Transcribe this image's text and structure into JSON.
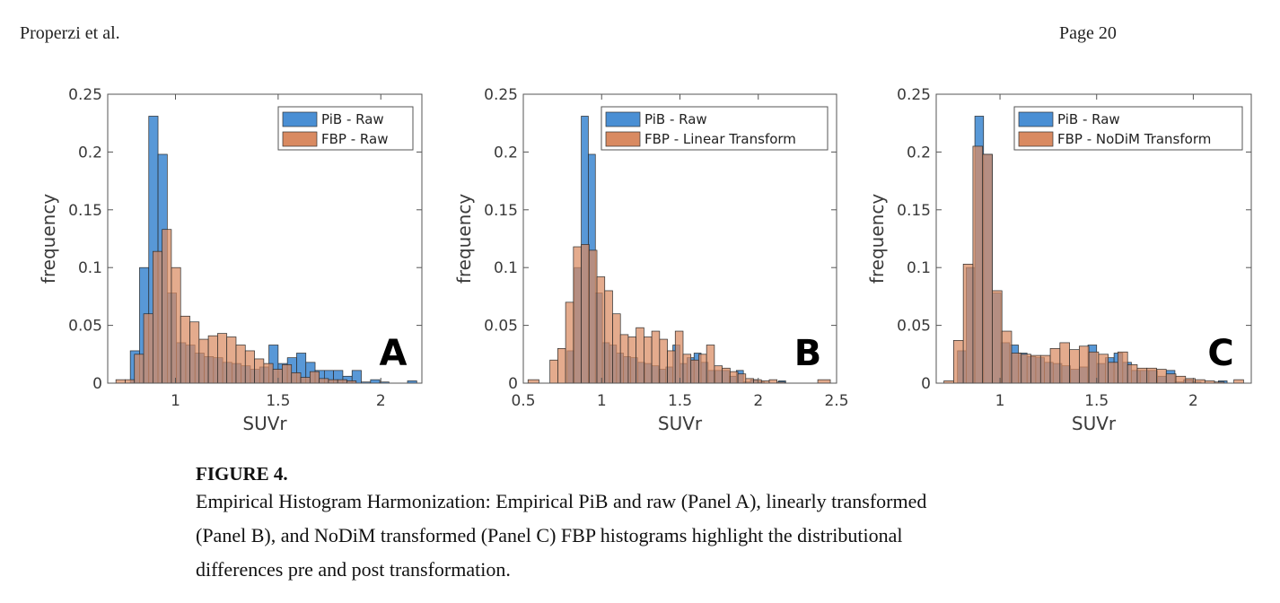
{
  "header": {
    "author": "Properzi et al.",
    "page": "Page 20"
  },
  "caption": {
    "figure_label": "FIGURE 4.",
    "lines": [
      "Empirical Histogram Harmonization: Empirical PiB and raw (Panel A), linearly transformed",
      "(Panel B), and NoDiM transformed (Panel C) FBP histograms highlight the distributional",
      "differences pre and post transformation."
    ]
  },
  "colors": {
    "pib": "#4a8fd4",
    "fbp": "#d98a61",
    "overlap": "#8a5a48"
  },
  "chart_data": [
    {
      "type": "bar",
      "panel_label": "A",
      "xlabel": "SUVr",
      "ylabel": "frequency",
      "xlim": [
        0.67,
        2.2
      ],
      "ylim": [
        0,
        0.25
      ],
      "xticks": [
        1,
        1.5,
        2
      ],
      "xtick_labels": [
        "1",
        "1.5",
        "2"
      ],
      "yticks": [
        0,
        0.05,
        0.1,
        0.15,
        0.2,
        0.25
      ],
      "ytick_labels": [
        "0",
        "0.05",
        "0.1",
        "0.15",
        "0.2",
        "0.25"
      ],
      "legend_position": "top-right",
      "series": [
        {
          "name": "PiB - Raw",
          "color": "pib",
          "bin_edges": [
            0.78,
            0.825,
            0.87,
            0.915,
            0.96,
            1.005,
            1.05,
            1.095,
            1.14,
            1.185,
            1.23,
            1.275,
            1.32,
            1.365,
            1.41,
            1.455,
            1.5,
            1.545,
            1.59,
            1.635,
            1.68,
            1.725,
            1.77,
            1.815,
            1.86,
            1.905,
            1.95,
            1.995,
            2.04,
            2.085,
            2.13,
            2.175
          ],
          "values": [
            0.028,
            0.1,
            0.231,
            0.198,
            0.078,
            0.035,
            0.033,
            0.026,
            0.023,
            0.022,
            0.018,
            0.017,
            0.015,
            0.012,
            0.014,
            0.033,
            0.017,
            0.022,
            0.026,
            0.018,
            0.011,
            0.011,
            0.011,
            0.006,
            0.011,
            0.001,
            0.003,
            0.001,
            0,
            0,
            0.002
          ]
        },
        {
          "name": "FBP - Raw",
          "color": "fbp",
          "bin_edges": [
            0.71,
            0.755,
            0.8,
            0.845,
            0.89,
            0.935,
            0.98,
            1.025,
            1.07,
            1.115,
            1.16,
            1.205,
            1.25,
            1.295,
            1.34,
            1.385,
            1.43,
            1.475,
            1.52,
            1.565,
            1.61,
            1.655,
            1.7,
            1.745,
            1.79,
            1.835,
            1.88
          ],
          "values": [
            0.003,
            0.003,
            0.025,
            0.06,
            0.114,
            0.133,
            0.1,
            0.058,
            0.053,
            0.038,
            0.041,
            0.043,
            0.04,
            0.033,
            0.028,
            0.021,
            0.017,
            0.012,
            0.016,
            0.009,
            0.005,
            0.01,
            0.004,
            0.003,
            0.003,
            0.002
          ]
        }
      ]
    },
    {
      "type": "bar",
      "panel_label": "B",
      "xlabel": "SUVr",
      "ylabel": "frequency",
      "xlim": [
        0.5,
        2.5
      ],
      "ylim": [
        0,
        0.25
      ],
      "xticks": [
        0.5,
        1,
        1.5,
        2,
        2.5
      ],
      "xtick_labels": [
        "0.5",
        "1",
        "1.5",
        "2",
        "2.5"
      ],
      "yticks": [
        0,
        0.05,
        0.1,
        0.15,
        0.2,
        0.25
      ],
      "ytick_labels": [
        "0",
        "0.05",
        "0.1",
        "0.15",
        "0.2",
        "0.25"
      ],
      "legend_position": "top-right",
      "series": [
        {
          "name": "PiB - Raw",
          "color": "pib",
          "bin_edges": [
            0.78,
            0.825,
            0.87,
            0.915,
            0.96,
            1.005,
            1.05,
            1.095,
            1.14,
            1.185,
            1.23,
            1.275,
            1.32,
            1.365,
            1.41,
            1.455,
            1.5,
            1.545,
            1.59,
            1.635,
            1.68,
            1.725,
            1.77,
            1.815,
            1.86,
            1.905,
            1.95,
            1.995,
            2.04,
            2.085,
            2.13,
            2.175
          ],
          "values": [
            0.028,
            0.1,
            0.231,
            0.198,
            0.078,
            0.035,
            0.033,
            0.026,
            0.023,
            0.022,
            0.018,
            0.017,
            0.015,
            0.012,
            0.014,
            0.033,
            0.017,
            0.022,
            0.026,
            0.018,
            0.011,
            0.011,
            0.011,
            0.006,
            0.011,
            0.001,
            0.003,
            0.001,
            0,
            0,
            0.002
          ]
        },
        {
          "name": "FBP - Linear Transform",
          "color": "fbp",
          "bin_edges": [
            0.53,
            0.6,
            0.67,
            0.72,
            0.77,
            0.82,
            0.87,
            0.92,
            0.97,
            1.02,
            1.07,
            1.12,
            1.17,
            1.22,
            1.27,
            1.32,
            1.37,
            1.42,
            1.47,
            1.52,
            1.57,
            1.62,
            1.67,
            1.72,
            1.77,
            1.82,
            1.87,
            1.92,
            1.97,
            2.02,
            2.07,
            2.12,
            2.17,
            2.22,
            2.3,
            2.38,
            2.46,
            2.53
          ],
          "values": [
            0.003,
            0,
            0.02,
            0.03,
            0.07,
            0.118,
            0.12,
            0.115,
            0.092,
            0.08,
            0.06,
            0.042,
            0.04,
            0.048,
            0.04,
            0.045,
            0.038,
            0.028,
            0.045,
            0.025,
            0.02,
            0.025,
            0.033,
            0.015,
            0.013,
            0.01,
            0.008,
            0.004,
            0.003,
            0.002,
            0.003,
            0.001,
            0,
            0,
            0,
            0.003,
            0
          ]
        }
      ]
    },
    {
      "type": "bar",
      "panel_label": "C",
      "xlabel": "SUVr",
      "ylabel": "frequency",
      "xlim": [
        0.67,
        2.3
      ],
      "ylim": [
        0,
        0.25
      ],
      "xticks": [
        1,
        1.5,
        2
      ],
      "xtick_labels": [
        "1",
        "1.5",
        "2"
      ],
      "yticks": [
        0,
        0.05,
        0.1,
        0.15,
        0.2,
        0.25
      ],
      "ytick_labels": [
        "0",
        "0.05",
        "0.1",
        "0.15",
        "0.2",
        "0.25"
      ],
      "legend_position": "top-right",
      "series": [
        {
          "name": "PiB - Raw",
          "color": "pib",
          "bin_edges": [
            0.78,
            0.825,
            0.87,
            0.915,
            0.96,
            1.005,
            1.05,
            1.095,
            1.14,
            1.185,
            1.23,
            1.275,
            1.32,
            1.365,
            1.41,
            1.455,
            1.5,
            1.545,
            1.59,
            1.635,
            1.68,
            1.725,
            1.77,
            1.815,
            1.86,
            1.905,
            1.95,
            1.995,
            2.04,
            2.085,
            2.13,
            2.175
          ],
          "values": [
            0.028,
            0.1,
            0.231,
            0.198,
            0.078,
            0.035,
            0.033,
            0.026,
            0.023,
            0.022,
            0.018,
            0.017,
            0.015,
            0.012,
            0.014,
            0.033,
            0.017,
            0.022,
            0.026,
            0.018,
            0.011,
            0.011,
            0.011,
            0.006,
            0.011,
            0.001,
            0.003,
            0.001,
            0,
            0,
            0.002
          ]
        },
        {
          "name": "FBP - NoDiM Transform",
          "color": "fbp",
          "bin_edges": [
            0.71,
            0.76,
            0.81,
            0.86,
            0.91,
            0.96,
            1.01,
            1.06,
            1.11,
            1.16,
            1.21,
            1.26,
            1.31,
            1.36,
            1.41,
            1.46,
            1.51,
            1.56,
            1.61,
            1.66,
            1.71,
            1.76,
            1.81,
            1.86,
            1.91,
            1.96,
            2.01,
            2.06,
            2.11,
            2.16,
            2.21,
            2.26
          ],
          "values": [
            0.002,
            0.037,
            0.103,
            0.205,
            0.198,
            0.08,
            0.045,
            0.026,
            0.025,
            0.024,
            0.024,
            0.03,
            0.035,
            0.029,
            0.032,
            0.027,
            0.025,
            0.018,
            0.027,
            0.016,
            0.013,
            0.013,
            0.012,
            0.008,
            0.006,
            0.004,
            0.003,
            0.002,
            0.001,
            0,
            0.003
          ]
        }
      ]
    }
  ]
}
